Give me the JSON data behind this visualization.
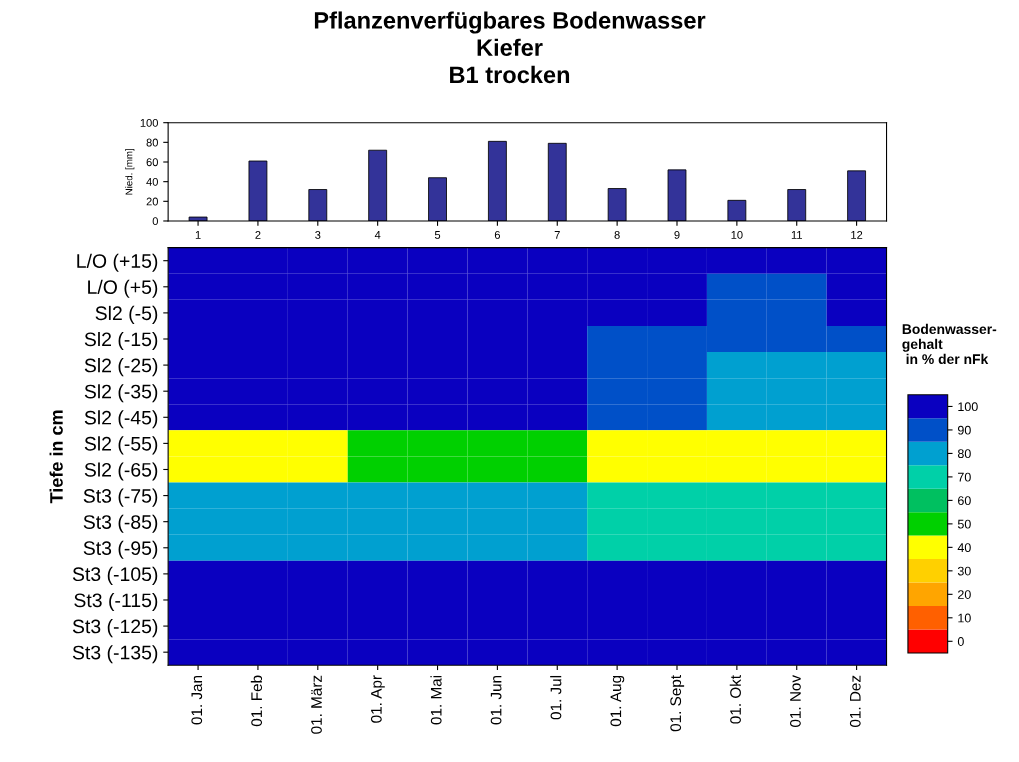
{
  "chart_data": [
    {
      "type": "bar",
      "title": "Pflanzenverfügbares Bodenwasser\nKiefer\nB1 trocken",
      "ylabel": "Nied. [mm]",
      "categories": [
        "1",
        "2",
        "3",
        "4",
        "5",
        "6",
        "7",
        "8",
        "9",
        "10",
        "11",
        "12"
      ],
      "values": [
        4,
        61,
        32,
        72,
        44,
        81,
        79,
        33,
        52,
        21,
        32,
        51
      ],
      "color": "#333399",
      "ylim": [
        0,
        100
      ],
      "yticks": [
        0,
        20,
        40,
        60,
        80,
        100
      ],
      "grid": false
    },
    {
      "type": "heatmap",
      "ylabel": "Tiefe in cm",
      "clabel": "Bodenwasser-\ngehalt\n in % der nFk",
      "categories": [
        "01. Jan",
        "01. Feb",
        "01. März",
        "01. Apr",
        "01. Mai",
        "01. Jun",
        "01. Jul",
        "01. Aug",
        "01. Sept",
        "01. Okt",
        "01. Nov",
        "01. Dez"
      ],
      "y_categories": [
        "L/O (+15)",
        "L/O (+5)",
        "Sl2 (-5)",
        "Sl2 (-15)",
        "Sl2 (-25)",
        "Sl2 (-35)",
        "Sl2 (-45)",
        "Sl2 (-55)",
        "Sl2 (-65)",
        "St3 (-75)",
        "St3 (-85)",
        "St3 (-95)",
        "St3 (-105)",
        "St3 (-115)",
        "St3 (-125)",
        "St3 (-135)"
      ],
      "cells": [
        [
          100,
          100,
          100,
          100,
          100,
          100,
          100,
          100,
          100,
          100,
          100,
          100
        ],
        [
          100,
          100,
          100,
          100,
          100,
          100,
          100,
          100,
          100,
          90,
          90,
          100
        ],
        [
          100,
          100,
          100,
          100,
          100,
          100,
          100,
          100,
          100,
          90,
          90,
          100
        ],
        [
          100,
          100,
          100,
          100,
          100,
          100,
          100,
          90,
          90,
          90,
          90,
          90
        ],
        [
          100,
          100,
          100,
          100,
          100,
          100,
          100,
          90,
          90,
          80,
          80,
          80
        ],
        [
          100,
          100,
          100,
          100,
          100,
          100,
          100,
          90,
          90,
          80,
          80,
          80
        ],
        [
          100,
          100,
          100,
          100,
          100,
          100,
          100,
          90,
          90,
          80,
          80,
          80
        ],
        [
          40,
          40,
          40,
          50,
          50,
          50,
          50,
          40,
          40,
          40,
          40,
          40
        ],
        [
          40,
          40,
          40,
          50,
          50,
          50,
          50,
          40,
          40,
          40,
          40,
          40
        ],
        [
          80,
          80,
          80,
          80,
          80,
          80,
          80,
          70,
          70,
          70,
          70,
          70
        ],
        [
          80,
          80,
          80,
          80,
          80,
          80,
          80,
          70,
          70,
          70,
          70,
          70
        ],
        [
          80,
          80,
          80,
          80,
          80,
          80,
          80,
          70,
          70,
          70,
          70,
          70
        ],
        [
          100,
          100,
          100,
          100,
          100,
          100,
          100,
          100,
          100,
          100,
          100,
          100
        ],
        [
          100,
          100,
          100,
          100,
          100,
          100,
          100,
          100,
          100,
          100,
          100,
          100
        ],
        [
          100,
          100,
          100,
          100,
          100,
          100,
          100,
          100,
          100,
          100,
          100,
          100
        ],
        [
          100,
          100,
          100,
          100,
          100,
          100,
          100,
          100,
          100,
          100,
          100,
          100
        ]
      ],
      "clim": [
        -5,
        105
      ],
      "cticks": [
        0,
        10,
        20,
        30,
        40,
        50,
        60,
        70,
        80,
        90,
        100
      ],
      "colors": [
        "#ff0000",
        "#ff6000",
        "#ffa500",
        "#ffd000",
        "#ffff00",
        "#00d000",
        "#00c060",
        "#00d0a8",
        "#00a0d0",
        "#0050c8",
        "#0a00c0"
      ]
    }
  ]
}
